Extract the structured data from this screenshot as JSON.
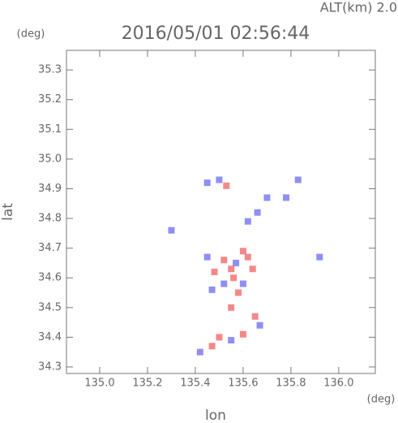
{
  "chart_data": {
    "type": "scatter",
    "title": "2016/05/01 02:56:44",
    "subtitle": "ALT(km) 2.0",
    "x_label": "lon",
    "y_label": "lat",
    "x_unit": "(deg)",
    "y_unit": "(deg)",
    "xlim": [
      134.861,
      136.153
    ],
    "ylim": [
      34.278,
      35.366
    ],
    "xticks": [
      {
        "value": 135,
        "label": "135.0"
      },
      135.2,
      135.4,
      135.6,
      135.8,
      {
        "value": 136,
        "label": "136.0"
      }
    ],
    "yticks": [
      34.3,
      34.4,
      34.5,
      34.6,
      34.7,
      34.8,
      34.9,
      {
        "value": 35,
        "label": "35.0"
      },
      35.1,
      35.2,
      35.3
    ],
    "series": [
      {
        "color": "#f06060",
        "x": [
          135.52,
          135.55,
          135.6,
          135.62,
          135.58,
          135.55,
          135.5,
          135.6,
          135.47,
          135.65,
          135.53,
          135.56,
          135.48,
          135.64
        ],
        "y": [
          34.66,
          34.63,
          34.69,
          34.67,
          34.55,
          34.5,
          34.4,
          34.41,
          34.37,
          34.47,
          34.91,
          34.6,
          34.62,
          34.63
        ]
      },
      {
        "color": "#6a6af0",
        "x": [
          135.47,
          135.52,
          135.6,
          135.57,
          135.45,
          135.66,
          135.62,
          135.5,
          135.45,
          135.55,
          135.42,
          135.7,
          135.83,
          135.92,
          135.3,
          135.67,
          135.78
        ],
        "y": [
          34.56,
          34.58,
          34.58,
          34.65,
          34.67,
          34.82,
          34.79,
          34.93,
          34.92,
          34.39,
          34.35,
          34.87,
          34.93,
          34.67,
          34.76,
          34.44,
          34.87
        ]
      }
    ]
  }
}
